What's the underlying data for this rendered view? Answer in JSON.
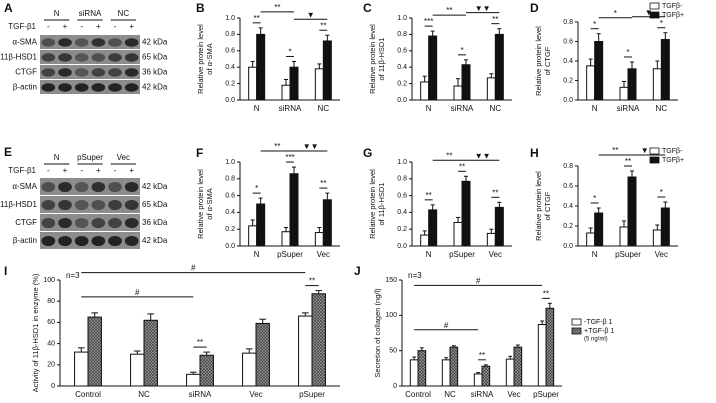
{
  "blots": [
    {
      "label": "A",
      "groups": [
        "N",
        "siRNA",
        "NC"
      ],
      "treatment": "TGF-β1",
      "signs": [
        "-",
        "+"
      ],
      "rows": [
        {
          "name": "α-SMA",
          "size": "42 kDa"
        },
        {
          "name": "11β-HSD1",
          "size": "65 kDa"
        },
        {
          "name": "CTGF",
          "size": "36 kDa"
        },
        {
          "name": "β-actin",
          "size": "42 kDa"
        }
      ]
    },
    {
      "label": "E",
      "groups": [
        "N",
        "pSuper",
        "Vec"
      ],
      "treatment": "TGF-β1",
      "signs": [
        "-",
        "+"
      ],
      "rows": [
        {
          "name": "α-SMA",
          "size": "42 kDa"
        },
        {
          "name": "11β-HSD1",
          "size": "65 kDa"
        },
        {
          "name": "CTGF",
          "size": "36 kDa"
        },
        {
          "name": "β-actin",
          "size": "42 kDa"
        }
      ]
    }
  ],
  "chart_data": [
    {
      "type": "bar",
      "label": "B",
      "ylabel": [
        "Relative protein level",
        "of α-SMA"
      ],
      "categories": [
        "N",
        "siRNA",
        "NC"
      ],
      "series": [
        {
          "color": "#ffffff",
          "values": [
            0.4,
            0.18,
            0.38
          ],
          "errors": [
            0.07,
            0.07,
            0.06
          ]
        },
        {
          "color": "#111111",
          "values": [
            0.8,
            0.4,
            0.72
          ],
          "errors": [
            0.08,
            0.07,
            0.07
          ]
        }
      ],
      "ylim": [
        0,
        1
      ],
      "yticks": [
        {
          "value": 0,
          "label": "0.0"
        },
        {
          "value": 0.2,
          "label": "0.2"
        },
        {
          "value": 0.4,
          "label": "0.4"
        },
        {
          "value": 0.6,
          "label": "0.6"
        },
        {
          "value": 0.8,
          "label": "0.8"
        },
        {
          "value": 1,
          "label": "1.0"
        }
      ],
      "annotations": [
        {
          "text": "**",
          "group": 0
        },
        {
          "text": "*",
          "group": 1
        },
        {
          "text": "**",
          "group": 2
        }
      ],
      "comparisons": [
        {
          "text": "**",
          "from": 0,
          "to": 1
        },
        {
          "text": "▼",
          "from": 1,
          "to": 2
        }
      ]
    },
    {
      "type": "bar",
      "label": "C",
      "ylabel": [
        "Relative protein level",
        "of 11β-HSD1"
      ],
      "categories": [
        "N",
        "siRNA",
        "NC"
      ],
      "series": [
        {
          "color": "#ffffff",
          "values": [
            0.22,
            0.17,
            0.27
          ],
          "errors": [
            0.07,
            0.09,
            0.05
          ]
        },
        {
          "color": "#111111",
          "values": [
            0.78,
            0.43,
            0.8
          ],
          "errors": [
            0.06,
            0.06,
            0.07
          ]
        }
      ],
      "ylim": [
        0,
        1
      ],
      "yticks": [
        {
          "value": 0,
          "label": "0.0"
        },
        {
          "value": 0.2,
          "label": "0.2"
        },
        {
          "value": 0.4,
          "label": "0.4"
        },
        {
          "value": 0.6,
          "label": "0.6"
        },
        {
          "value": 0.8,
          "label": "0.8"
        },
        {
          "value": 1,
          "label": "1.0"
        }
      ],
      "annotations": [
        {
          "text": "***",
          "group": 0
        },
        {
          "text": "*",
          "group": 1
        },
        {
          "text": "**",
          "group": 2
        }
      ],
      "comparisons": [
        {
          "text": "**",
          "from": 0,
          "to": 1
        },
        {
          "text": "▼▼",
          "from": 1,
          "to": 2
        }
      ]
    },
    {
      "type": "bar",
      "label": "D",
      "ylabel": [
        "Relative protein level",
        "of CTGF"
      ],
      "categories": [
        "N",
        "siRNA",
        "NC"
      ],
      "legend": "top-right",
      "series": [
        {
          "name": "TGFβ-",
          "color": "#ffffff",
          "values": [
            0.35,
            0.13,
            0.32
          ],
          "errors": [
            0.07,
            0.06,
            0.08
          ]
        },
        {
          "name": "TGFβ+",
          "color": "#111111",
          "values": [
            0.6,
            0.32,
            0.62
          ],
          "errors": [
            0.08,
            0.07,
            0.07
          ]
        }
      ],
      "ylim": [
        0,
        0.8
      ],
      "yticks": [
        {
          "value": 0,
          "label": "0.0"
        },
        {
          "value": 0.2,
          "label": "0.2"
        },
        {
          "value": 0.4,
          "label": "0.4"
        },
        {
          "value": 0.6,
          "label": "0.6"
        },
        {
          "value": 0.8,
          "label": "0.8"
        }
      ],
      "annotations": [
        {
          "text": "*",
          "group": 0
        },
        {
          "text": "*",
          "group": 1
        },
        {
          "text": "*",
          "group": 2
        }
      ],
      "comparisons": [
        {
          "text": "*",
          "from": 0,
          "to": 1
        },
        {
          "text": "▼",
          "from": 1,
          "to": 2
        }
      ]
    },
    {
      "type": "bar",
      "label": "F",
      "ylabel": [
        "Relative protein level",
        "of α-SMA"
      ],
      "categories": [
        "N",
        "pSuper",
        "Vec"
      ],
      "series": [
        {
          "color": "#ffffff",
          "values": [
            0.24,
            0.17,
            0.16
          ],
          "errors": [
            0.07,
            0.05,
            0.06
          ]
        },
        {
          "color": "#111111",
          "values": [
            0.5,
            0.86,
            0.55
          ],
          "errors": [
            0.07,
            0.08,
            0.08
          ]
        }
      ],
      "ylim": [
        0,
        1
      ],
      "yticks": [
        {
          "value": 0,
          "label": "0.0"
        },
        {
          "value": 0.2,
          "label": "0.2"
        },
        {
          "value": 0.4,
          "label": "0.4"
        },
        {
          "value": 0.6,
          "label": "0.6"
        },
        {
          "value": 0.8,
          "label": "0.8"
        },
        {
          "value": 1,
          "label": "1.0"
        }
      ],
      "annotations": [
        {
          "text": "*",
          "group": 0
        },
        {
          "text": "***",
          "group": 1
        },
        {
          "text": "**",
          "group": 2
        }
      ],
      "comparisons": [
        {
          "text": "**",
          "from": 0,
          "to": 1
        },
        {
          "text": "▼▼",
          "from": 1,
          "to": 2
        }
      ]
    },
    {
      "type": "bar",
      "label": "G",
      "ylabel": [
        "Relative protein level",
        "of 11β-HSD1"
      ],
      "categories": [
        "N",
        "pSuper",
        "Vec"
      ],
      "series": [
        {
          "color": "#ffffff",
          "values": [
            0.13,
            0.28,
            0.15
          ],
          "errors": [
            0.05,
            0.06,
            0.05
          ]
        },
        {
          "color": "#111111",
          "values": [
            0.43,
            0.77,
            0.46
          ],
          "errors": [
            0.06,
            0.06,
            0.06
          ]
        }
      ],
      "ylim": [
        0,
        1
      ],
      "yticks": [
        {
          "value": 0,
          "label": "0.0"
        },
        {
          "value": 0.2,
          "label": "0.2"
        },
        {
          "value": 0.4,
          "label": "0.4"
        },
        {
          "value": 0.6,
          "label": "0.6"
        },
        {
          "value": 0.8,
          "label": "0.8"
        },
        {
          "value": 1,
          "label": "1.0"
        }
      ],
      "annotations": [
        {
          "text": "**",
          "group": 0
        },
        {
          "text": "**",
          "group": 1
        },
        {
          "text": "**",
          "group": 2
        }
      ],
      "comparisons": [
        {
          "text": "**",
          "from": 0,
          "to": 1
        },
        {
          "text": "▼▼",
          "from": 1,
          "to": 2
        }
      ]
    },
    {
      "type": "bar",
      "label": "H",
      "ylabel": [
        "Relative protein level",
        "of CTGF"
      ],
      "categories": [
        "N",
        "pSuper",
        "Vec"
      ],
      "legend": "top-right",
      "series": [
        {
          "name": "TGFβ-",
          "color": "#ffffff",
          "values": [
            0.13,
            0.19,
            0.16
          ],
          "errors": [
            0.05,
            0.06,
            0.05
          ]
        },
        {
          "name": "TGFβ+",
          "color": "#111111",
          "values": [
            0.33,
            0.69,
            0.38
          ],
          "errors": [
            0.05,
            0.06,
            0.06
          ]
        }
      ],
      "ylim": [
        0,
        0.8
      ],
      "yticks": [
        {
          "value": 0,
          "label": "0.0"
        },
        {
          "value": 0.2,
          "label": "0.2"
        },
        {
          "value": 0.4,
          "label": "0.4"
        },
        {
          "value": 0.6,
          "label": "0.6"
        },
        {
          "value": 0.8,
          "label": "0.8"
        }
      ],
      "annotations": [
        {
          "text": "*",
          "group": 0
        },
        {
          "text": "**",
          "group": 1
        },
        {
          "text": "*",
          "group": 2
        }
      ],
      "comparisons": [
        {
          "text": "**",
          "from": 0,
          "to": 1
        },
        {
          "text": "▼▼",
          "from": 1,
          "to": 2
        }
      ]
    },
    {
      "type": "bar",
      "label": "I",
      "note": "n=3",
      "ylabel": [
        "Activity of 11β-HSD1 in enzyme (%)"
      ],
      "categories": [
        "Control",
        "NC",
        "siRNA",
        "Vec",
        "pSuper"
      ],
      "series": [
        {
          "color": "#ffffff",
          "values": [
            32,
            30,
            11,
            31,
            66
          ],
          "errors": [
            4,
            3,
            2,
            4,
            3
          ]
        },
        {
          "color": "#777777",
          "hatch": true,
          "values": [
            65,
            62,
            29,
            59,
            87
          ],
          "errors": [
            4,
            6,
            3,
            4,
            3
          ]
        }
      ],
      "ylim": [
        0,
        100
      ],
      "yticks": [
        0,
        20,
        40,
        60,
        80,
        100
      ],
      "annotations": [
        {
          "text": "**",
          "group": 2
        },
        {
          "text": "**",
          "group": 4
        }
      ],
      "comparisons": [
        {
          "text": "#",
          "from": 0,
          "to": 2
        },
        {
          "text": "#",
          "from": 0,
          "to": 4
        }
      ]
    },
    {
      "type": "bar",
      "label": "J",
      "note": "n=3",
      "ylabel": [
        "Secretion of collagen (ng/l)"
      ],
      "categories": [
        "Control",
        "NC",
        "siRNA",
        "Vec",
        "pSuper"
      ],
      "legend": "right",
      "series": [
        {
          "name": "-TGF-β 1",
          "color": "#ffffff",
          "values": [
            37,
            37,
            17,
            38,
            87
          ],
          "errors": [
            4,
            3,
            2,
            4,
            5
          ]
        },
        {
          "name": "+TGF-β 1",
          "legend_note": "(5 ng/ml)",
          "color": "#777777",
          "hatch": true,
          "values": [
            50,
            55,
            28,
            55,
            110
          ],
          "errors": [
            4,
            2,
            2,
            3,
            7
          ]
        }
      ],
      "ylim": [
        0,
        150
      ],
      "yticks": [
        0,
        50,
        100,
        150
      ],
      "annotations": [
        {
          "text": "**",
          "group": 2
        },
        {
          "text": "**",
          "group": 4
        }
      ],
      "comparisons": [
        {
          "text": "#",
          "from": 0,
          "to": 2
        },
        {
          "text": "#",
          "from": 0,
          "to": 4
        }
      ]
    }
  ]
}
